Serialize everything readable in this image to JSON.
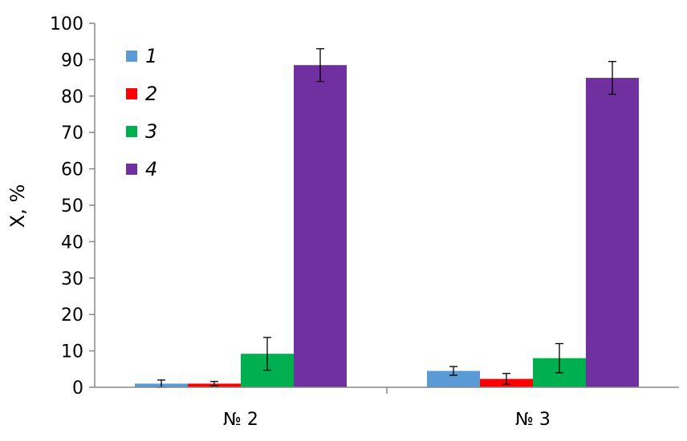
{
  "chart_data": {
    "type": "bar",
    "categories": [
      "№ 2",
      "№ 3"
    ],
    "ylabel": "X, %",
    "xlabel": "",
    "ylim": [
      0,
      100
    ],
    "yticks": [
      0,
      10,
      20,
      30,
      40,
      50,
      60,
      70,
      80,
      90,
      100
    ],
    "grid": false,
    "legend_position": "top-left",
    "series": [
      {
        "name": "1",
        "color": "#5B9BD5",
        "values": [
          1.0,
          4.5
        ],
        "errors": [
          1.0,
          1.2
        ]
      },
      {
        "name": "2",
        "color": "#FF0000",
        "values": [
          1.0,
          2.3
        ],
        "errors": [
          0.6,
          1.5
        ]
      },
      {
        "name": "3",
        "color": "#00B050",
        "values": [
          9.2,
          8.0
        ],
        "errors": [
          4.5,
          4.0
        ]
      },
      {
        "name": "4",
        "color": "#7030A0",
        "values": [
          88.5,
          85.0
        ],
        "errors": [
          4.5,
          4.5
        ]
      }
    ]
  }
}
